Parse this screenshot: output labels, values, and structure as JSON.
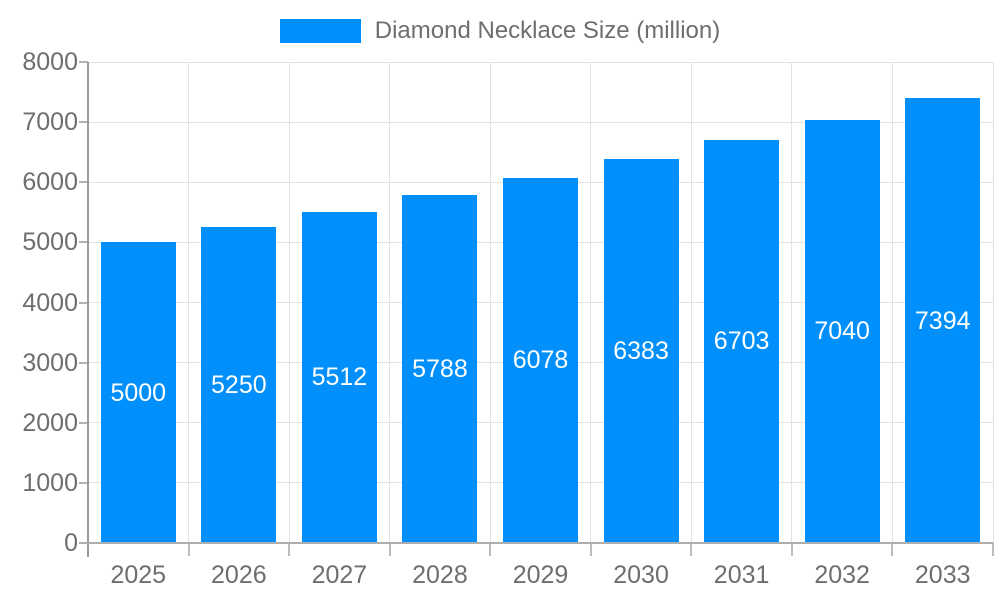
{
  "chart_data": {
    "type": "bar",
    "title": "Diamond Necklace Size (million)",
    "legend": {
      "label": "Diamond Necklace Size (million)",
      "position": "top"
    },
    "categories": [
      "2025",
      "2026",
      "2027",
      "2028",
      "2029",
      "2030",
      "2031",
      "2032",
      "2033"
    ],
    "values": [
      5000,
      5250,
      5512,
      5788,
      6078,
      6383,
      6703,
      7040,
      7394
    ],
    "bar_value_labels": [
      "5000",
      "5250",
      "5512",
      "5788",
      "6078",
      "6383",
      "6703",
      "7040",
      "7394"
    ],
    "xlabel": "",
    "ylabel": "",
    "ylim": [
      0,
      8000
    ],
    "ytick_step": 1000,
    "ytick_labels": [
      "0",
      "1000",
      "2000",
      "3000",
      "4000",
      "5000",
      "6000",
      "7000",
      "8000"
    ],
    "grid": true,
    "colors": {
      "bar": "#008FFB",
      "bar_label_text": "#ffffff",
      "axis_text": "#6e6e6e",
      "legend_text": "#6e6e6e",
      "gridline": "#e2e2e2",
      "axis_line": "#9a9a9a",
      "background": "#ffffff"
    }
  }
}
